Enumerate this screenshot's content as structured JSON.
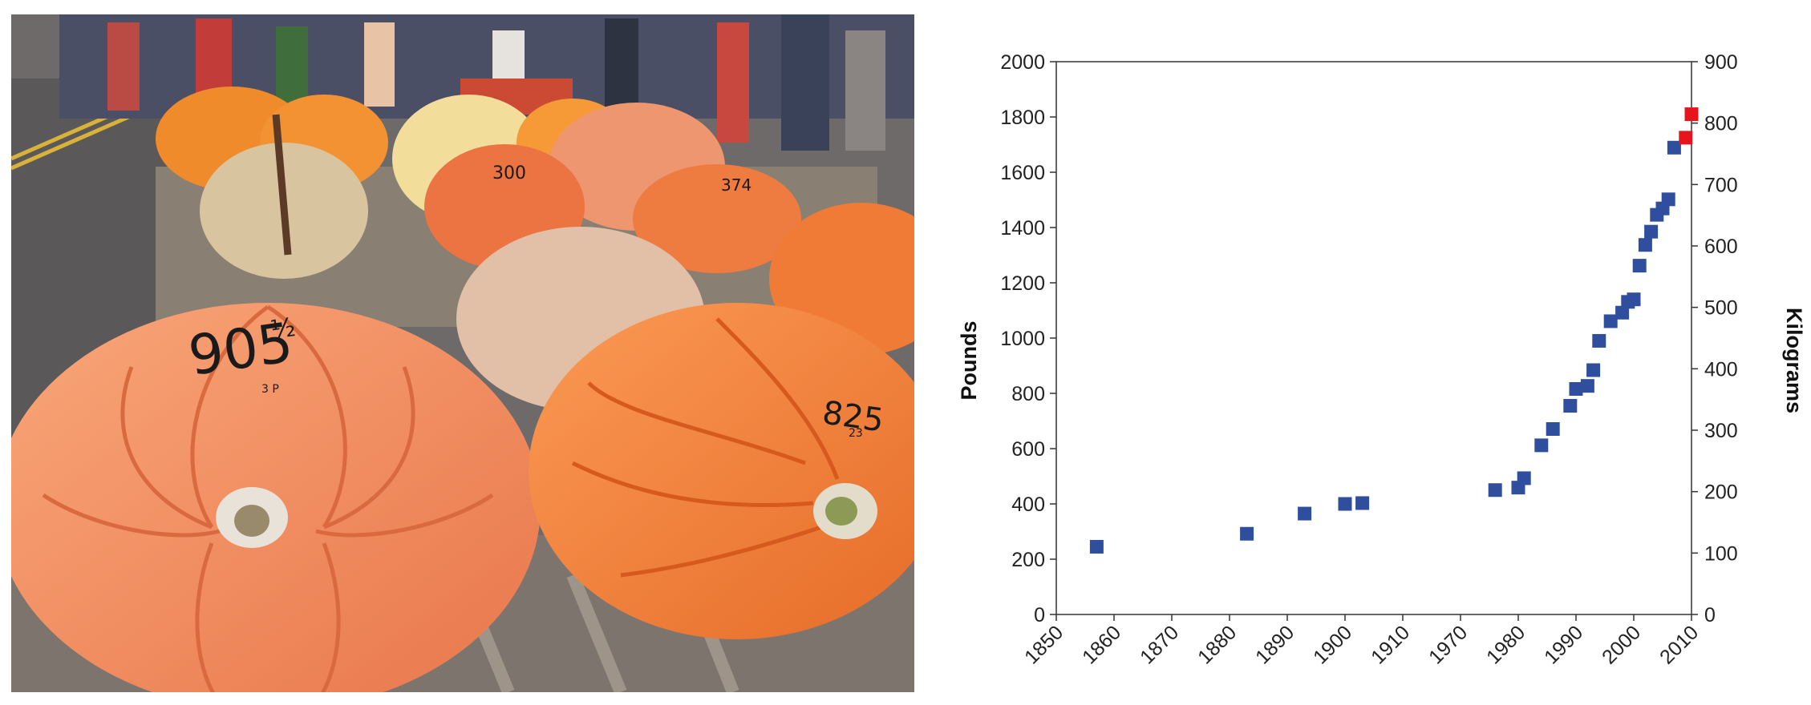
{
  "photo": {
    "tag_large": "905",
    "tag_large_fraction": "½",
    "tag_large_sub": "3 P",
    "tag_medium": "825",
    "tag_medium_sub": "23",
    "tag_back_1": "300",
    "tag_back_2": "374"
  },
  "chart_data": {
    "type": "scatter",
    "title": "",
    "xlabel": "",
    "ylabel": "Pounds",
    "y2label": "Kilograms",
    "ylim": [
      0,
      2000
    ],
    "y2lim": [
      0,
      900
    ],
    "axis_break": "between 1910 and 1970",
    "grid": false,
    "legend": "none",
    "x_ticks": [
      "1850",
      "1860",
      "1870",
      "1880",
      "1890",
      "1900",
      "1910",
      "1970",
      "1980",
      "1990",
      "2000",
      "2010"
    ],
    "y_ticks": [
      "0",
      "200",
      "400",
      "600",
      "800",
      "1000",
      "1200",
      "1400",
      "1600",
      "1800",
      "2000"
    ],
    "y2_ticks": [
      "0",
      "100",
      "200",
      "300",
      "400",
      "500",
      "600",
      "700",
      "800",
      "900"
    ],
    "colors": {
      "blue": "#2f4f9e",
      "red": "#e8141c"
    },
    "points": [
      {
        "x": 1857,
        "y": 245,
        "color": "blue"
      },
      {
        "x": 1883,
        "y": 292,
        "color": "blue"
      },
      {
        "x": 1893,
        "y": 365,
        "color": "blue"
      },
      {
        "x": 1900,
        "y": 400,
        "color": "blue"
      },
      {
        "x": 1903,
        "y": 403,
        "color": "blue"
      },
      {
        "x": 1976,
        "y": 450,
        "color": "blue"
      },
      {
        "x": 1980,
        "y": 459,
        "color": "blue"
      },
      {
        "x": 1981,
        "y": 493,
        "color": "blue"
      },
      {
        "x": 1984,
        "y": 612,
        "color": "blue"
      },
      {
        "x": 1986,
        "y": 671,
        "color": "blue"
      },
      {
        "x": 1989,
        "y": 755,
        "color": "blue"
      },
      {
        "x": 1990,
        "y": 816,
        "color": "blue"
      },
      {
        "x": 1992,
        "y": 827,
        "color": "blue"
      },
      {
        "x": 1993,
        "y": 884,
        "color": "blue"
      },
      {
        "x": 1994,
        "y": 990,
        "color": "blue"
      },
      {
        "x": 1996,
        "y": 1061,
        "color": "blue"
      },
      {
        "x": 1998,
        "y": 1092,
        "color": "blue"
      },
      {
        "x": 1999,
        "y": 1131,
        "color": "blue"
      },
      {
        "x": 2000,
        "y": 1140,
        "color": "blue"
      },
      {
        "x": 2001,
        "y": 1262,
        "color": "blue"
      },
      {
        "x": 2002,
        "y": 1337,
        "color": "blue"
      },
      {
        "x": 2003,
        "y": 1385,
        "color": "blue"
      },
      {
        "x": 2004,
        "y": 1446,
        "color": "blue"
      },
      {
        "x": 2005,
        "y": 1469,
        "color": "blue"
      },
      {
        "x": 2006,
        "y": 1502,
        "color": "blue"
      },
      {
        "x": 2007,
        "y": 1689,
        "color": "blue"
      },
      {
        "x": 2009,
        "y": 1725,
        "color": "red"
      },
      {
        "x": 2010,
        "y": 1810,
        "color": "red"
      }
    ]
  }
}
